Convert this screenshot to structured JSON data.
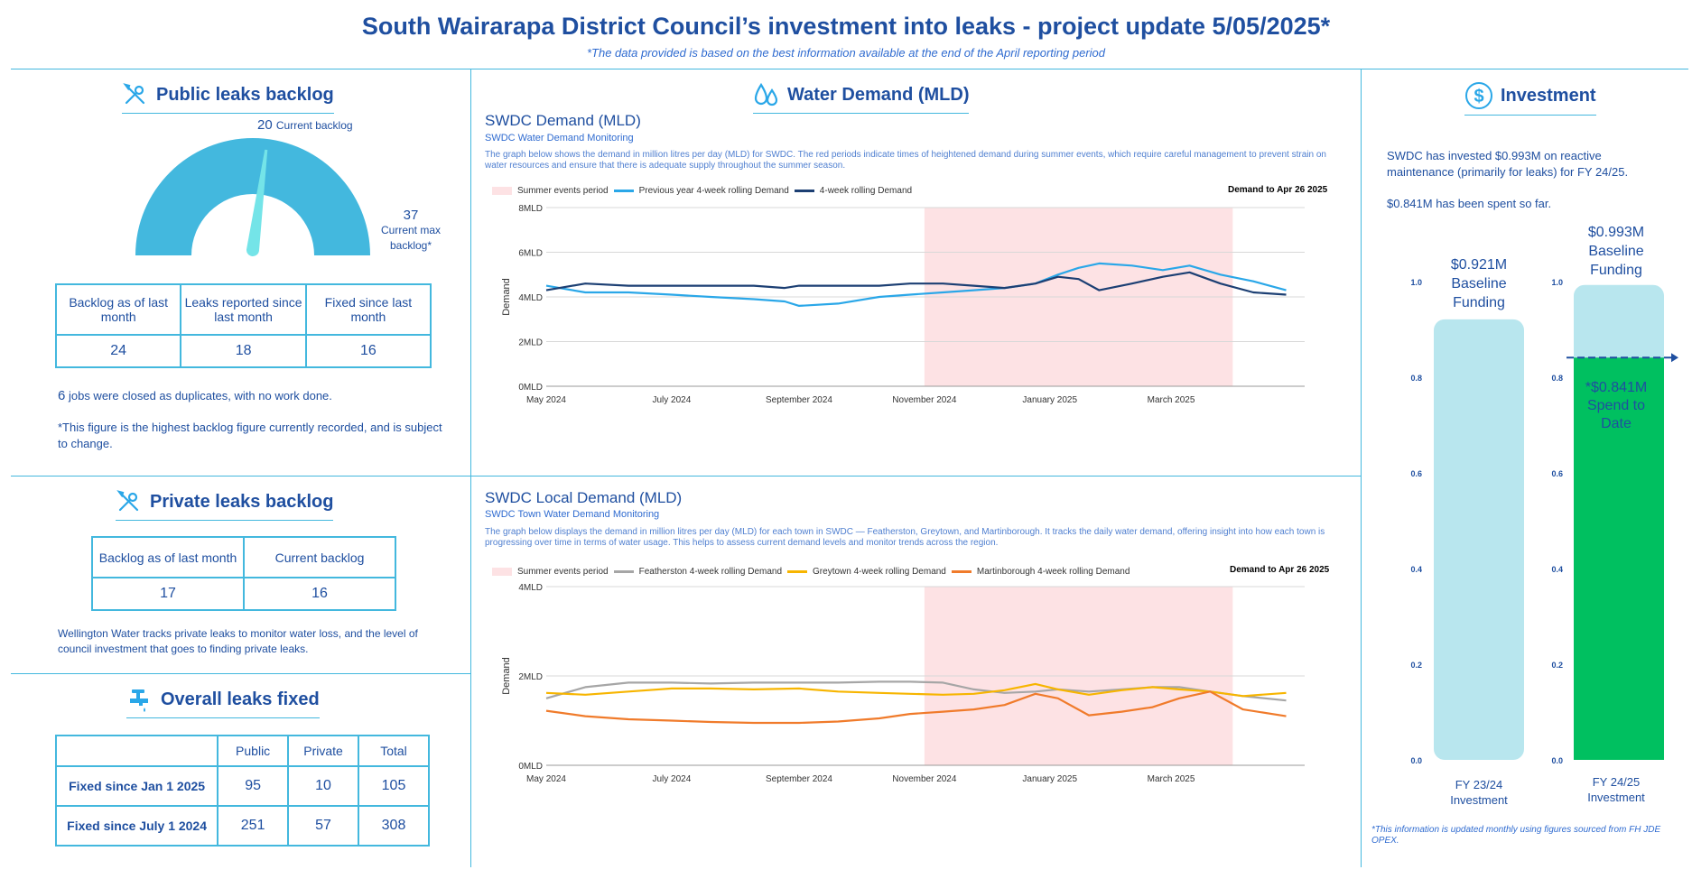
{
  "header": {
    "title": "South Wairarapa District Council’s investment into leaks - project update 5/05/2025*",
    "subtitle": "*The data provided is based on the best information available at the end of the April reporting period"
  },
  "colors": {
    "primary": "#1f4fa0",
    "accent": "#43b8de",
    "gauge": "#43b8de",
    "needle": "#74e4e8",
    "summer": "#fde2e4",
    "prev_year": "#2aa7e8",
    "current": "#1c3f73",
    "featherston": "#a6a6a6",
    "greytown": "#f7b500",
    "martinborough": "#f07b2b",
    "baseline": "#b8e6ee",
    "spend": "#00c060"
  },
  "public_leaks": {
    "heading": "Public leaks backlog",
    "icon": "wrench-tools-icon",
    "gauge": {
      "current_value": "20",
      "current_label": "Current backlog",
      "max_value": "37",
      "max_label_line1": "Current max",
      "max_label_line2": "backlog*",
      "fraction": 0.54
    },
    "table": {
      "headers": [
        "Backlog as of last month",
        "Leaks reported since last month",
        "Fixed since last month"
      ],
      "values": [
        "24",
        "18",
        "16"
      ]
    },
    "duplicates_count": "6",
    "duplicates_text": "jobs were closed as duplicates, with no work done.",
    "footnote": "*This figure is the highest backlog figure currently recorded, and is subject to change."
  },
  "private_leaks": {
    "heading": "Private leaks backlog",
    "icon": "wrench-tools-icon",
    "table": {
      "headers": [
        "Backlog as of last month",
        "Current backlog"
      ],
      "values": [
        "17",
        "16"
      ]
    },
    "note": "Wellington Water tracks private leaks to monitor water loss, and the level of council investment that goes to finding private leaks."
  },
  "overall": {
    "heading": "Overall leaks fixed",
    "icon": "tap-icon",
    "columns": [
      "Public",
      "Private",
      "Total"
    ],
    "rows": [
      {
        "label": "Fixed since Jan 1 2025",
        "public": "95",
        "private": "10",
        "total": "105"
      },
      {
        "label": "Fixed since July 1 2024",
        "public": "251",
        "private": "57",
        "total": "308"
      }
    ]
  },
  "water_demand": {
    "heading": "Water Demand (MLD)",
    "icon": "water-drops-icon",
    "chart1": {
      "title": "SWDC Demand (MLD)",
      "subtitle": "SWDC Water Demand Monitoring",
      "description": "The graph below shows the demand in million litres per day (MLD) for SWDC. The red periods indicate times of heightened demand during summer events, which require careful management to prevent strain on water resources and ensure that there is adequate supply throughout the summer season.",
      "legend": [
        "Summer events period",
        "Previous year 4-week rolling Demand",
        "4-week rolling Demand"
      ],
      "note": "Demand to Apr 26 2025"
    },
    "chart2": {
      "title": "SWDC Local Demand (MLD)",
      "subtitle": "SWDC Town Water Demand Monitoring",
      "description": "The graph below displays the demand in million litres per day (MLD) for each town in SWDC — Featherston, Greytown, and Martinborough. It tracks the daily water demand, offering insight into how each town is progressing over time in terms of water usage. This helps to assess current demand levels and monitor trends across the region.",
      "legend": [
        "Summer events period",
        "Featherston 4-week rolling Demand",
        "Greytown 4-week rolling Demand",
        "Martinborough 4-week rolling Demand"
      ],
      "note": "Demand to Apr 26 2025"
    }
  },
  "investment": {
    "heading": "Investment",
    "icon": "dollar-circle-icon",
    "text1": "SWDC has invested $0.993M on reactive maintenance (primarily for leaks) for FY 24/25.",
    "text2": "$0.841M has been spent so far.",
    "bar1": {
      "amount": "$0.921M",
      "label1": "Baseline",
      "label2": "Funding",
      "x1": "FY 23/24",
      "x2": "Investment"
    },
    "bar2": {
      "amount": "$0.993M",
      "label1": "Baseline",
      "label2": "Funding",
      "spend_label1": "*$0.841M",
      "spend_label2": "Spend to",
      "spend_label3": "Date",
      "x1": "FY 24/25",
      "x2": "Investment"
    },
    "footnote": "*This information is updated monthly using figures sourced from FH JDE OPEX."
  },
  "chart_data": [
    {
      "type": "line",
      "title": "SWDC Demand (MLD)",
      "ylabel": "Demand",
      "ylim": [
        0,
        8
      ],
      "yticks": [
        "0MLD",
        "2MLD",
        "4MLD",
        "6MLD",
        "8MLD"
      ],
      "xticks": [
        "May 2024",
        "July 2024",
        "September 2024",
        "November 2024",
        "January 2025",
        "March 2025"
      ],
      "shaded_period": [
        "2024-11-01",
        "2025-03-31"
      ],
      "x": [
        "2024-05-01",
        "2024-05-20",
        "2024-06-10",
        "2024-07-01",
        "2024-07-20",
        "2024-08-10",
        "2024-08-25",
        "2024-09-01",
        "2024-09-20",
        "2024-10-10",
        "2024-10-25",
        "2024-11-10",
        "2024-11-25",
        "2024-12-10",
        "2024-12-25",
        "2025-01-05",
        "2025-01-15",
        "2025-01-25",
        "2025-02-10",
        "2025-02-25",
        "2025-03-10",
        "2025-03-25",
        "2025-04-10",
        "2025-04-26"
      ],
      "series": [
        {
          "name": "Previous year 4-week rolling Demand",
          "values": [
            4.5,
            4.2,
            4.2,
            4.1,
            4.0,
            3.9,
            3.8,
            3.6,
            3.7,
            4.0,
            4.1,
            4.2,
            4.3,
            4.4,
            4.6,
            5.0,
            5.3,
            5.5,
            5.4,
            5.2,
            5.4,
            5.0,
            4.7,
            4.3
          ]
        },
        {
          "name": "4-week rolling Demand",
          "values": [
            4.3,
            4.6,
            4.5,
            4.5,
            4.5,
            4.5,
            4.4,
            4.5,
            4.5,
            4.5,
            4.6,
            4.6,
            4.5,
            4.4,
            4.6,
            4.9,
            4.8,
            4.3,
            4.6,
            4.9,
            5.1,
            4.6,
            4.2,
            4.1
          ]
        }
      ]
    },
    {
      "type": "line",
      "title": "SWDC Local Demand (MLD)",
      "ylabel": "Demand",
      "ylim": [
        0,
        4
      ],
      "yticks": [
        "0MLD",
        "2MLD",
        "4MLD"
      ],
      "xticks": [
        "May 2024",
        "July 2024",
        "September 2024",
        "November 2024",
        "January 2025",
        "March 2025"
      ],
      "shaded_period": [
        "2024-11-01",
        "2025-03-31"
      ],
      "x": [
        "2024-05-01",
        "2024-05-20",
        "2024-06-10",
        "2024-07-01",
        "2024-07-20",
        "2024-08-10",
        "2024-09-01",
        "2024-09-20",
        "2024-10-10",
        "2024-10-25",
        "2024-11-10",
        "2024-11-25",
        "2024-12-10",
        "2024-12-25",
        "2025-01-05",
        "2025-01-20",
        "2025-02-05",
        "2025-02-20",
        "2025-03-05",
        "2025-03-20",
        "2025-04-05",
        "2025-04-26"
      ],
      "series": [
        {
          "name": "Featherston 4-week rolling Demand",
          "values": [
            1.5,
            1.75,
            1.85,
            1.85,
            1.83,
            1.85,
            1.85,
            1.85,
            1.87,
            1.87,
            1.85,
            1.7,
            1.62,
            1.65,
            1.7,
            1.65,
            1.7,
            1.75,
            1.75,
            1.65,
            1.55,
            1.45
          ]
        },
        {
          "name": "Greytown 4-week rolling Demand",
          "values": [
            1.62,
            1.58,
            1.65,
            1.72,
            1.72,
            1.7,
            1.72,
            1.65,
            1.62,
            1.6,
            1.58,
            1.6,
            1.68,
            1.82,
            1.7,
            1.58,
            1.68,
            1.75,
            1.7,
            1.65,
            1.55,
            1.62
          ]
        },
        {
          "name": "Martinborough 4-week rolling Demand",
          "values": [
            1.22,
            1.1,
            1.03,
            1.0,
            0.97,
            0.95,
            0.95,
            0.98,
            1.05,
            1.15,
            1.2,
            1.25,
            1.35,
            1.6,
            1.5,
            1.12,
            1.2,
            1.3,
            1.5,
            1.65,
            1.25,
            1.1
          ]
        }
      ]
    },
    {
      "type": "bar",
      "title": "Investment",
      "categories": [
        "FY 23/24 Investment",
        "FY 24/25 Investment"
      ],
      "ylim": [
        0,
        1.0
      ],
      "yticks": [
        "0.0",
        "0.2",
        "0.4",
        "0.6",
        "0.8",
        "1.0"
      ],
      "series": [
        {
          "name": "Baseline Funding",
          "values": [
            0.921,
            0.993
          ]
        },
        {
          "name": "Spend to Date",
          "values": [
            null,
            0.841
          ]
        }
      ]
    }
  ]
}
